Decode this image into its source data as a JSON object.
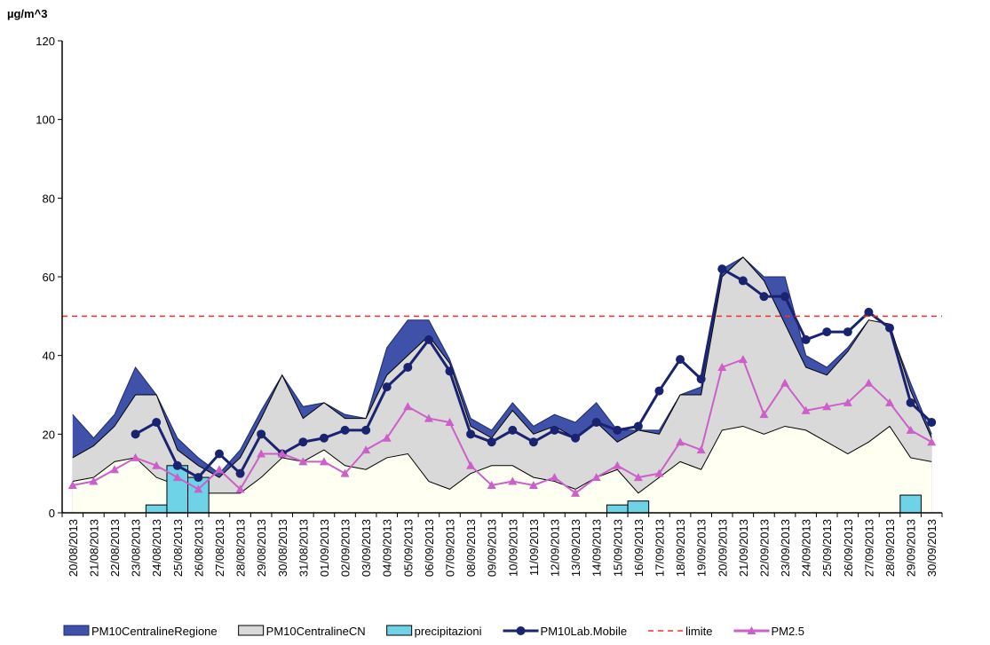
{
  "chart_data": {
    "type": "combo",
    "y_label": "µg/m^3",
    "categories": [
      "20/08/2013",
      "21/08/2013",
      "22/08/2013",
      "23/08/2013",
      "24/08/2013",
      "25/08/2013",
      "26/08/2013",
      "27/08/2013",
      "28/08/2013",
      "29/08/2013",
      "30/08/2013",
      "31/08/2013",
      "01/09/2013",
      "02/09/2013",
      "03/09/2013",
      "04/09/2013",
      "05/09/2013",
      "06/09/2013",
      "07/09/2013",
      "08/09/2013",
      "09/09/2013",
      "10/09/2013",
      "11/09/2013",
      "12/09/2013",
      "13/09/2013",
      "14/09/2013",
      "15/09/2013",
      "16/09/2013",
      "17/09/2013",
      "18/09/2013",
      "19/09/2013",
      "20/09/2013",
      "21/09/2013",
      "22/09/2013",
      "23/09/2013",
      "24/09/2013",
      "25/09/2013",
      "26/09/2013",
      "27/09/2013",
      "28/09/2013",
      "29/09/2013",
      "30/09/2013"
    ],
    "ylim": [
      0,
      120
    ],
    "yticks": [
      0,
      20,
      40,
      60,
      80,
      100,
      120
    ],
    "series": [
      {
        "name": "PM10CentralineRegione",
        "kind": "area",
        "color": "#3f51a9",
        "stroke": "#1f2a6b",
        "values": [
          25,
          19,
          25,
          37,
          30,
          19,
          14,
          10,
          16,
          26,
          35,
          27,
          28,
          25,
          24,
          42,
          49,
          49,
          39,
          24,
          21,
          28,
          22,
          25,
          23,
          28,
          21,
          21,
          21,
          30,
          32,
          62,
          65,
          60,
          60,
          40,
          37,
          42,
          49,
          47,
          33,
          20
        ]
      },
      {
        "name": "PM10CentralineCN",
        "kind": "area",
        "color": "#d9d9d9",
        "stroke": "#000000",
        "values": [
          14,
          17,
          22,
          30,
          30,
          16,
          12,
          9,
          14,
          24,
          35,
          24,
          28,
          24,
          24,
          35,
          40,
          45,
          38,
          22,
          19,
          26,
          20,
          22,
          19,
          23,
          18,
          21,
          20,
          30,
          30,
          60,
          65,
          59,
          48,
          37,
          35,
          41,
          49,
          48,
          31,
          19
        ]
      },
      {
        "kind": "area",
        "color": "#fffff2",
        "stroke": "#000000",
        "values": [
          8,
          9,
          13,
          14,
          9,
          7,
          5,
          5,
          5,
          9,
          14,
          13,
          16,
          12,
          11,
          14,
          15,
          8,
          6,
          10,
          12,
          12,
          9,
          8,
          6,
          9,
          11,
          5,
          9,
          13,
          11,
          21,
          22,
          20,
          22,
          21,
          18,
          15,
          18,
          22,
          14,
          13
        ]
      },
      {
        "name": "precipitazioni",
        "kind": "bar",
        "color": "#6fd3e8",
        "stroke": "#000000",
        "values": [
          null,
          null,
          null,
          null,
          2,
          12,
          9,
          null,
          null,
          null,
          null,
          null,
          null,
          null,
          null,
          null,
          null,
          null,
          null,
          null,
          null,
          null,
          null,
          null,
          null,
          null,
          2,
          3,
          null,
          null,
          null,
          null,
          null,
          null,
          null,
          null,
          null,
          null,
          null,
          null,
          4.5,
          null
        ]
      },
      {
        "name": "PM10Lab.Mobile",
        "kind": "line",
        "marker": "circle",
        "color": "#1a2370",
        "values": [
          null,
          null,
          null,
          20,
          23,
          12,
          9,
          15,
          10,
          20,
          15,
          18,
          19,
          21,
          21,
          32,
          37,
          44,
          36,
          20,
          18,
          21,
          18,
          21,
          19,
          23,
          21,
          22,
          31,
          39,
          34,
          62,
          59,
          55,
          55,
          44,
          46,
          46,
          51,
          47,
          28,
          23
        ]
      },
      {
        "name": "limite",
        "kind": "hline",
        "color": "#ff2a2a",
        "value": 50
      },
      {
        "name": "PM2.5",
        "kind": "line",
        "marker": "triangle",
        "color": "#cc5fc8",
        "values": [
          7,
          8,
          11,
          14,
          12,
          9,
          6,
          11,
          6,
          15,
          15,
          13,
          13,
          10,
          16,
          19,
          27,
          24,
          23,
          12,
          7,
          8,
          7,
          9,
          5,
          9,
          12,
          9,
          10,
          18,
          16,
          37,
          39,
          25,
          33,
          26,
          27,
          28,
          33,
          28,
          21,
          18
        ]
      }
    ]
  }
}
